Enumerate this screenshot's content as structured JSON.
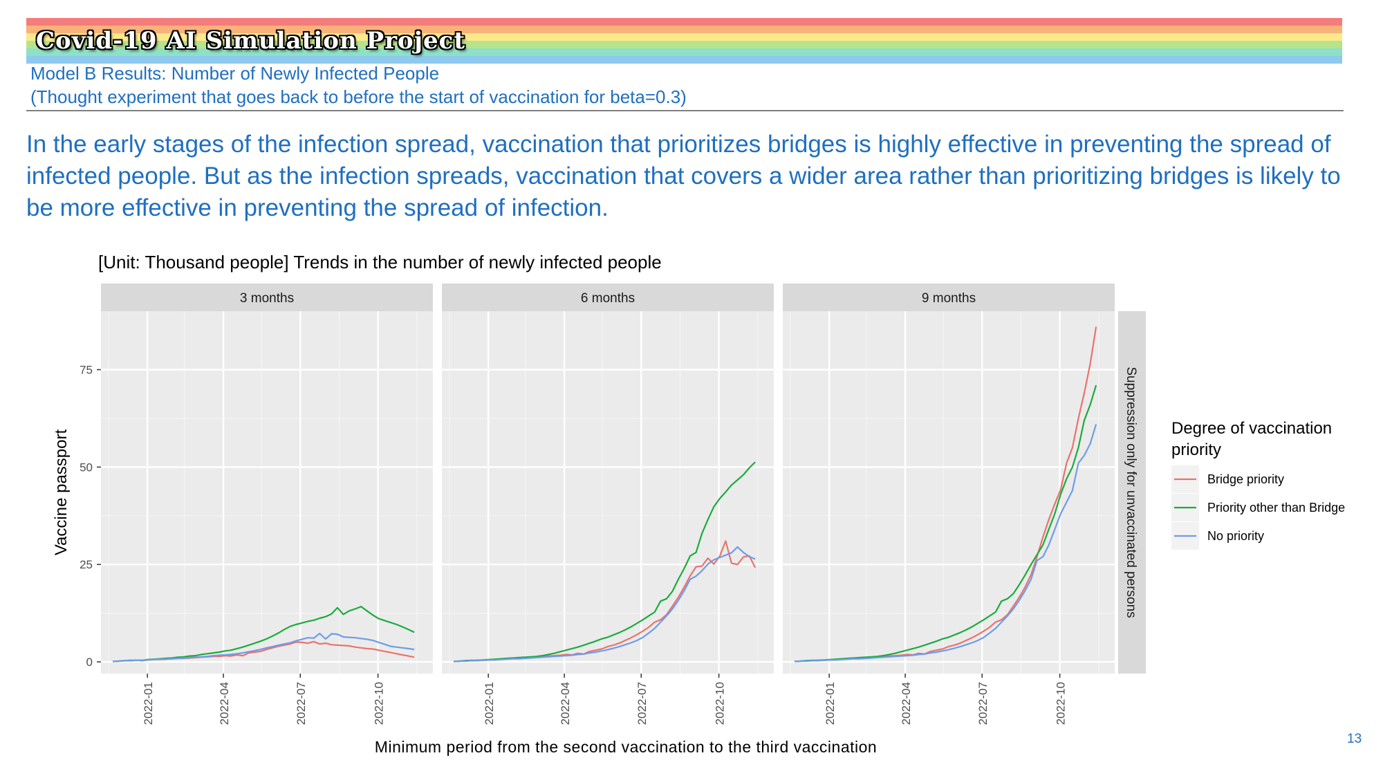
{
  "header": {
    "project_title": "Covid-19 AI Simulation Project",
    "subtitle_line1": "Model B Results: Number of Newly Infected People",
    "subtitle_line2": "(Thought experiment that goes back to before the start of vaccination for beta=0.3)",
    "rainbow_colors": [
      "#f47c7c",
      "#f8b27a",
      "#fde98a",
      "#b6e38b",
      "#8ee0c6",
      "#8ec9f0",
      "#a79be6"
    ]
  },
  "summary": "In the early stages of the infection spread, vaccination that prioritizes bridges is highly effective in preventing the spread of infected people. But as the infection spreads, vaccination that covers a wider area rather than prioritizing bridges is likely to be more effective in preventing the spread of infection.",
  "page_number": "13",
  "chart_data": {
    "type": "line",
    "title": "[Unit: Thousand people] Trends in the number of newly infected people",
    "xlabel": "Minimum period from the second vaccination to the third vaccination",
    "ylabel": "Vaccine passport",
    "row_strip": "Suppression only for unvaccinated persons",
    "legend_title": "Degree of vaccination priority",
    "legend_position": "right",
    "grid": true,
    "ylim": [
      -3,
      90
    ],
    "yticks": [
      0,
      25,
      50,
      75
    ],
    "xlim": [
      "2021-11-07",
      "2022-12-05"
    ],
    "xticks": [
      "2022-01",
      "2022-04",
      "2022-07",
      "2022-10"
    ],
    "tick_dates": [
      "2022-01-01",
      "2022-04-01",
      "2022-07-01",
      "2022-10-01"
    ],
    "x": [
      "2021-11-21",
      "2021-11-28",
      "2021-12-05",
      "2021-12-12",
      "2021-12-19",
      "2021-12-26",
      "2022-01-02",
      "2022-01-09",
      "2022-01-16",
      "2022-01-23",
      "2022-01-30",
      "2022-02-06",
      "2022-02-13",
      "2022-02-20",
      "2022-02-27",
      "2022-03-06",
      "2022-03-13",
      "2022-03-20",
      "2022-03-27",
      "2022-04-03",
      "2022-04-10",
      "2022-04-17",
      "2022-04-24",
      "2022-05-01",
      "2022-05-08",
      "2022-05-15",
      "2022-05-22",
      "2022-05-29",
      "2022-06-05",
      "2022-06-12",
      "2022-06-19",
      "2022-06-26",
      "2022-07-03",
      "2022-07-10",
      "2022-07-17",
      "2022-07-24",
      "2022-07-31",
      "2022-08-07",
      "2022-08-14",
      "2022-08-21",
      "2022-08-28",
      "2022-09-04",
      "2022-09-11",
      "2022-09-18",
      "2022-09-25",
      "2022-10-02",
      "2022-10-09",
      "2022-10-16",
      "2022-10-23",
      "2022-10-30",
      "2022-11-06",
      "2022-11-13"
    ],
    "series_styles": [
      {
        "name": "Bridge priority",
        "color": "#e8736c"
      },
      {
        "name": "Priority other than Bridge",
        "color": "#1aab3c"
      },
      {
        "name": "No priority",
        "color": "#6d9ce8"
      }
    ],
    "panels": [
      {
        "label": "3 months",
        "series": [
          {
            "name": "Bridge priority",
            "values": [
              0.1,
              0.2,
              0.3,
              0.3,
              0.4,
              0.3,
              0.5,
              0.6,
              0.6,
              0.7,
              0.8,
              0.9,
              0.9,
              1.0,
              1.1,
              1.2,
              1.3,
              1.4,
              1.4,
              1.6,
              1.5,
              1.8,
              1.6,
              2.3,
              2.5,
              2.7,
              3.2,
              3.6,
              4.0,
              4.3,
              4.6,
              5.1,
              5.0,
              4.8,
              5.2,
              4.6,
              4.8,
              4.4,
              4.3,
              4.2,
              4.1,
              3.8,
              3.6,
              3.4,
              3.3,
              3.0,
              2.7,
              2.4,
              2.1,
              1.8,
              1.5,
              1.2
            ]
          },
          {
            "name": "Priority other than Bridge",
            "values": [
              0.1,
              0.2,
              0.3,
              0.4,
              0.4,
              0.4,
              0.6,
              0.7,
              0.8,
              0.9,
              1.0,
              1.2,
              1.3,
              1.5,
              1.6,
              1.9,
              2.1,
              2.3,
              2.5,
              2.8,
              3.0,
              3.4,
              3.8,
              4.3,
              4.8,
              5.3,
              5.9,
              6.6,
              7.4,
              8.3,
              9.1,
              9.6,
              10.0,
              10.4,
              10.7,
              11.2,
              11.6,
              12.3,
              13.9,
              12.2,
              13.1,
              13.6,
              14.2,
              13.1,
              12.0,
              11.1,
              10.6,
              10.1,
              9.6,
              9.0,
              8.3,
              7.6
            ]
          },
          {
            "name": "No priority",
            "values": [
              0.1,
              0.2,
              0.3,
              0.3,
              0.4,
              0.4,
              0.5,
              0.6,
              0.7,
              0.7,
              0.8,
              0.9,
              1.0,
              1.1,
              1.2,
              1.3,
              1.4,
              1.6,
              1.7,
              1.8,
              1.9,
              2.1,
              2.3,
              2.6,
              2.9,
              3.2,
              3.6,
              3.9,
              4.3,
              4.6,
              4.9,
              5.4,
              5.8,
              6.2,
              6.1,
              7.3,
              5.9,
              7.2,
              7.1,
              6.4,
              6.3,
              6.2,
              6.0,
              5.8,
              5.5,
              5.0,
              4.5,
              4.0,
              3.8,
              3.6,
              3.4,
              3.2
            ]
          }
        ]
      },
      {
        "label": "6 months",
        "series": [
          {
            "name": "Bridge priority",
            "values": [
              0.1,
              0.2,
              0.3,
              0.3,
              0.4,
              0.4,
              0.5,
              0.6,
              0.7,
              0.8,
              0.9,
              1.0,
              1.1,
              1.2,
              1.3,
              1.4,
              1.5,
              1.6,
              1.7,
              1.9,
              1.8,
              2.2,
              2.0,
              2.7,
              3.0,
              3.3,
              3.9,
              4.3,
              4.8,
              5.5,
              6.2,
              7.0,
              7.9,
              8.9,
              10.2,
              10.8,
              12.1,
              14.3,
              16.6,
              19.2,
              22.1,
              24.4,
              24.6,
              26.6,
              25.1,
              27.1,
              31.0,
              25.3,
              25.0,
              26.9,
              27.2,
              24.2
            ]
          },
          {
            "name": "Priority other than Bridge",
            "values": [
              0.1,
              0.2,
              0.3,
              0.4,
              0.4,
              0.5,
              0.6,
              0.7,
              0.8,
              0.9,
              1.0,
              1.1,
              1.2,
              1.3,
              1.4,
              1.6,
              1.9,
              2.2,
              2.6,
              3.0,
              3.4,
              3.8,
              4.3,
              4.8,
              5.3,
              5.9,
              6.3,
              6.9,
              7.5,
              8.2,
              9.0,
              9.9,
              10.8,
              11.8,
              12.8,
              15.6,
              16.2,
              18.1,
              21.2,
              24.0,
              27.2,
              28.1,
              33.0,
              36.5,
              39.8,
              41.9,
              43.6,
              45.4,
              46.7,
              48.0,
              49.8,
              51.3
            ]
          },
          {
            "name": "No priority",
            "values": [
              0.1,
              0.2,
              0.2,
              0.3,
              0.3,
              0.4,
              0.5,
              0.5,
              0.6,
              0.7,
              0.8,
              0.8,
              0.9,
              1.0,
              1.1,
              1.2,
              1.3,
              1.4,
              1.5,
              1.6,
              1.7,
              1.9,
              2.0,
              2.3,
              2.5,
              2.8,
              3.1,
              3.5,
              3.9,
              4.4,
              4.9,
              5.5,
              6.3,
              7.4,
              8.6,
              10.2,
              11.8,
              13.6,
              15.8,
              18.3,
              21.2,
              22.0,
              23.4,
              25.1,
              26.2,
              26.8,
              27.4,
              28.0,
              29.5,
              28.1,
              27.0,
              26.4
            ]
          }
        ]
      },
      {
        "label": "9 months",
        "series": [
          {
            "name": "Bridge priority",
            "values": [
              0.1,
              0.2,
              0.3,
              0.3,
              0.4,
              0.4,
              0.5,
              0.6,
              0.7,
              0.8,
              0.9,
              1.0,
              1.1,
              1.2,
              1.3,
              1.4,
              1.5,
              1.6,
              1.7,
              1.9,
              1.8,
              2.2,
              2.0,
              2.7,
              3.0,
              3.3,
              3.9,
              4.3,
              4.8,
              5.5,
              6.2,
              7.0,
              7.9,
              8.9,
              10.2,
              10.8,
              12.1,
              14.3,
              16.6,
              19.2,
              22.4,
              27.0,
              32.0,
              36.5,
              40.5,
              44.2,
              51.0,
              55.0,
              62.5,
              69.0,
              76.5,
              86.0
            ]
          },
          {
            "name": "Priority other than Bridge",
            "values": [
              0.1,
              0.2,
              0.3,
              0.4,
              0.4,
              0.5,
              0.6,
              0.7,
              0.8,
              0.9,
              1.0,
              1.1,
              1.2,
              1.3,
              1.4,
              1.6,
              1.9,
              2.2,
              2.6,
              3.0,
              3.4,
              3.8,
              4.3,
              4.8,
              5.3,
              5.9,
              6.3,
              6.9,
              7.5,
              8.2,
              9.0,
              9.9,
              10.8,
              11.8,
              12.8,
              15.6,
              16.2,
              17.5,
              19.8,
              22.3,
              25.0,
              27.5,
              30.0,
              34.0,
              38.0,
              43.0,
              47.0,
              50.0,
              55.0,
              62.0,
              66.0,
              71.0
            ]
          },
          {
            "name": "No priority",
            "values": [
              0.1,
              0.2,
              0.2,
              0.3,
              0.3,
              0.4,
              0.5,
              0.5,
              0.6,
              0.7,
              0.8,
              0.8,
              0.9,
              1.0,
              1.1,
              1.2,
              1.3,
              1.4,
              1.5,
              1.6,
              1.7,
              1.9,
              2.0,
              2.3,
              2.5,
              2.8,
              3.1,
              3.5,
              3.9,
              4.4,
              4.9,
              5.5,
              6.3,
              7.4,
              8.6,
              10.2,
              11.8,
              13.6,
              15.8,
              18.3,
              21.2,
              26.0,
              27.0,
              30.0,
              34.0,
              38.0,
              41.0,
              44.0,
              51.0,
              53.0,
              56.0,
              61.0
            ]
          }
        ]
      }
    ]
  }
}
